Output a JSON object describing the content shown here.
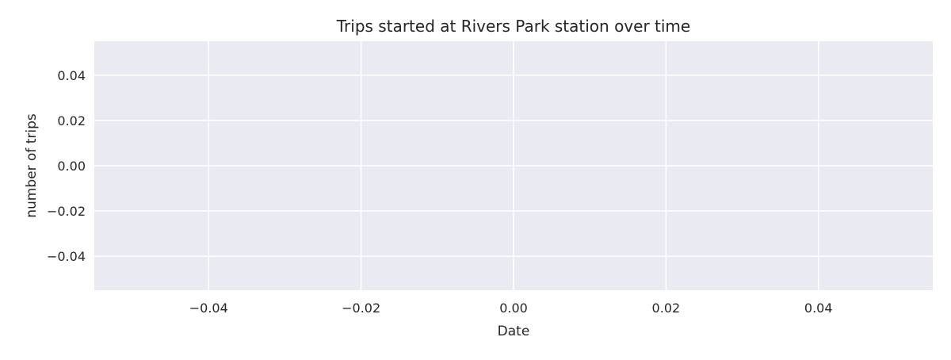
{
  "chart_data": {
    "type": "line",
    "title": "Trips started at Rivers Park station over time",
    "xlabel": "Date",
    "ylabel": "number of trips",
    "xlim": [
      -0.055,
      0.055
    ],
    "ylim": [
      -0.055,
      0.055
    ],
    "xticks": [
      -0.04,
      -0.02,
      0.0,
      0.02,
      0.04
    ],
    "xtick_labels": [
      "−0.04",
      "−0.02",
      "0.00",
      "0.02",
      "0.04"
    ],
    "yticks": [
      0.04,
      0.02,
      0.0,
      -0.02,
      -0.04
    ],
    "ytick_labels": [
      "0.04",
      "0.02",
      "0.00",
      "−0.02",
      "−0.04"
    ],
    "series": [
      {
        "x": [],
        "values": []
      }
    ],
    "grid": true,
    "colors": {
      "plot_background": "#eaeaf2",
      "grid": "#ffffff",
      "text": "#262626"
    }
  }
}
